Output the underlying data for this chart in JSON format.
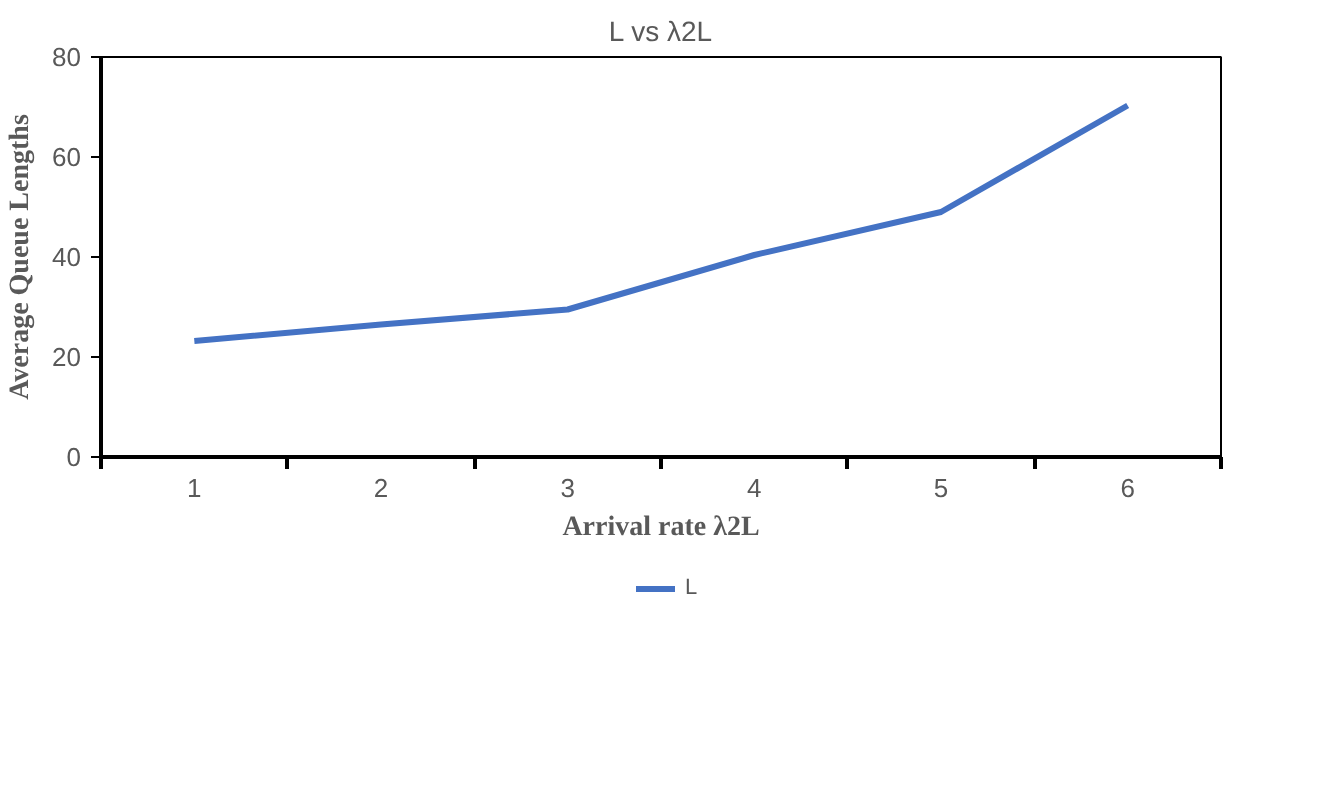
{
  "chart_data": {
    "type": "line",
    "title": "L vs λ2L",
    "xlabel": "Arrival rate λ2L",
    "ylabel": "Average Queue Lengths",
    "categories": [
      "1",
      "2",
      "3",
      "4",
      "5",
      "6"
    ],
    "series": [
      {
        "name": "L",
        "color": "#4472c4",
        "values": [
          23.2,
          26.5,
          29.5,
          40.4,
          49,
          70.3
        ]
      }
    ],
    "ylim": [
      0,
      80
    ],
    "yticks": [
      0,
      20,
      40,
      60,
      80
    ],
    "grid": false,
    "legend": "bottom",
    "marker": "none",
    "line_style": "solid"
  }
}
